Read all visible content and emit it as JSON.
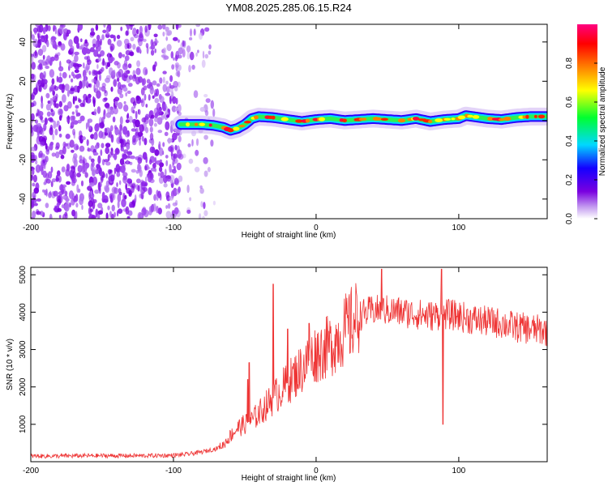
{
  "figure_title": "YM08.2025.285.06.15.R24",
  "chart_data": [
    {
      "type": "heatmap",
      "title": "YM08.2025.285.06.15.R24",
      "xlabel": "Height of straight line (km)",
      "ylabel": "Frequency (Hz)",
      "xlim": [
        -200,
        162
      ],
      "ylim": [
        -50,
        49
      ],
      "xticks": [
        -200,
        -100,
        0,
        100
      ],
      "yticks": [
        -40,
        -20,
        0,
        20,
        40
      ],
      "colorbar": {
        "label": "Normalized spectral amplitude",
        "range": [
          0,
          1
        ],
        "ticks": [
          0.0,
          0.2,
          0.4,
          0.6,
          0.8
        ],
        "colormap": "rainbow",
        "colors": [
          "#ffffff",
          "#c49cf0",
          "#7a00e0",
          "#1400ff",
          "#00d8ff",
          "#00ff30",
          "#ffff00",
          "#ff8000",
          "#ff0000",
          "#ff0080"
        ]
      },
      "noise_region_x": [
        -200,
        -95
      ],
      "signal_ridge": {
        "x": [
          -95,
          -80,
          -72,
          -65,
          -60,
          -55,
          -50,
          -45,
          -40,
          -30,
          -20,
          -10,
          0,
          10,
          20,
          30,
          40,
          50,
          60,
          70,
          80,
          90,
          100,
          105,
          110,
          120,
          130,
          140,
          150,
          162
        ],
        "y": [
          -2,
          -2,
          -2.5,
          -3.5,
          -5,
          -4,
          -2,
          1,
          2,
          1.5,
          0.5,
          -0.5,
          0.5,
          1,
          0,
          0.5,
          1,
          0.5,
          0,
          1,
          -0.5,
          0.5,
          1,
          2.5,
          2,
          1,
          0.5,
          1.5,
          2,
          2
        ]
      }
    },
    {
      "type": "line",
      "xlabel": "Height of straight line (km)",
      "ylabel": "SNR (10 * v/v)",
      "xlim": [
        -200,
        162
      ],
      "ylim": [
        0,
        5200
      ],
      "xticks": [
        -200,
        -100,
        0,
        100
      ],
      "yticks": [
        1000,
        2000,
        3000,
        4000,
        5000
      ],
      "series": [
        {
          "name": "SNR",
          "color": "#ee3333",
          "x": [
            -200,
            -180,
            -160,
            -140,
            -120,
            -100,
            -90,
            -80,
            -70,
            -65,
            -60,
            -55,
            -50,
            -45,
            -40,
            -35,
            -30,
            -25,
            -20,
            -15,
            -10,
            -5,
            0,
            5,
            10,
            15,
            20,
            25,
            30,
            40,
            50,
            60,
            70,
            80,
            90,
            100,
            110,
            120,
            130,
            140,
            150,
            162
          ],
          "y": [
            150,
            150,
            160,
            160,
            160,
            170,
            200,
            260,
            350,
            450,
            700,
            900,
            1000,
            1100,
            1300,
            1500,
            1700,
            1900,
            2100,
            2300,
            2500,
            2700,
            2900,
            3000,
            3100,
            3300,
            3500,
            3700,
            3900,
            4050,
            4050,
            4000,
            3950,
            3900,
            3950,
            3900,
            3800,
            3750,
            3700,
            3600,
            3550,
            3500
          ],
          "spikes": [
            {
              "x": -48,
              "y": 2200
            },
            {
              "x": -47,
              "y": 2650
            },
            {
              "x": -30,
              "y": 4750
            },
            {
              "x": -20,
              "y": 3550
            },
            {
              "x": -5,
              "y": 3700
            },
            {
              "x": 46,
              "y": 5150
            },
            {
              "x": 88,
              "y": 5150
            },
            {
              "x": 89,
              "y": 1000
            }
          ]
        }
      ]
    }
  ]
}
